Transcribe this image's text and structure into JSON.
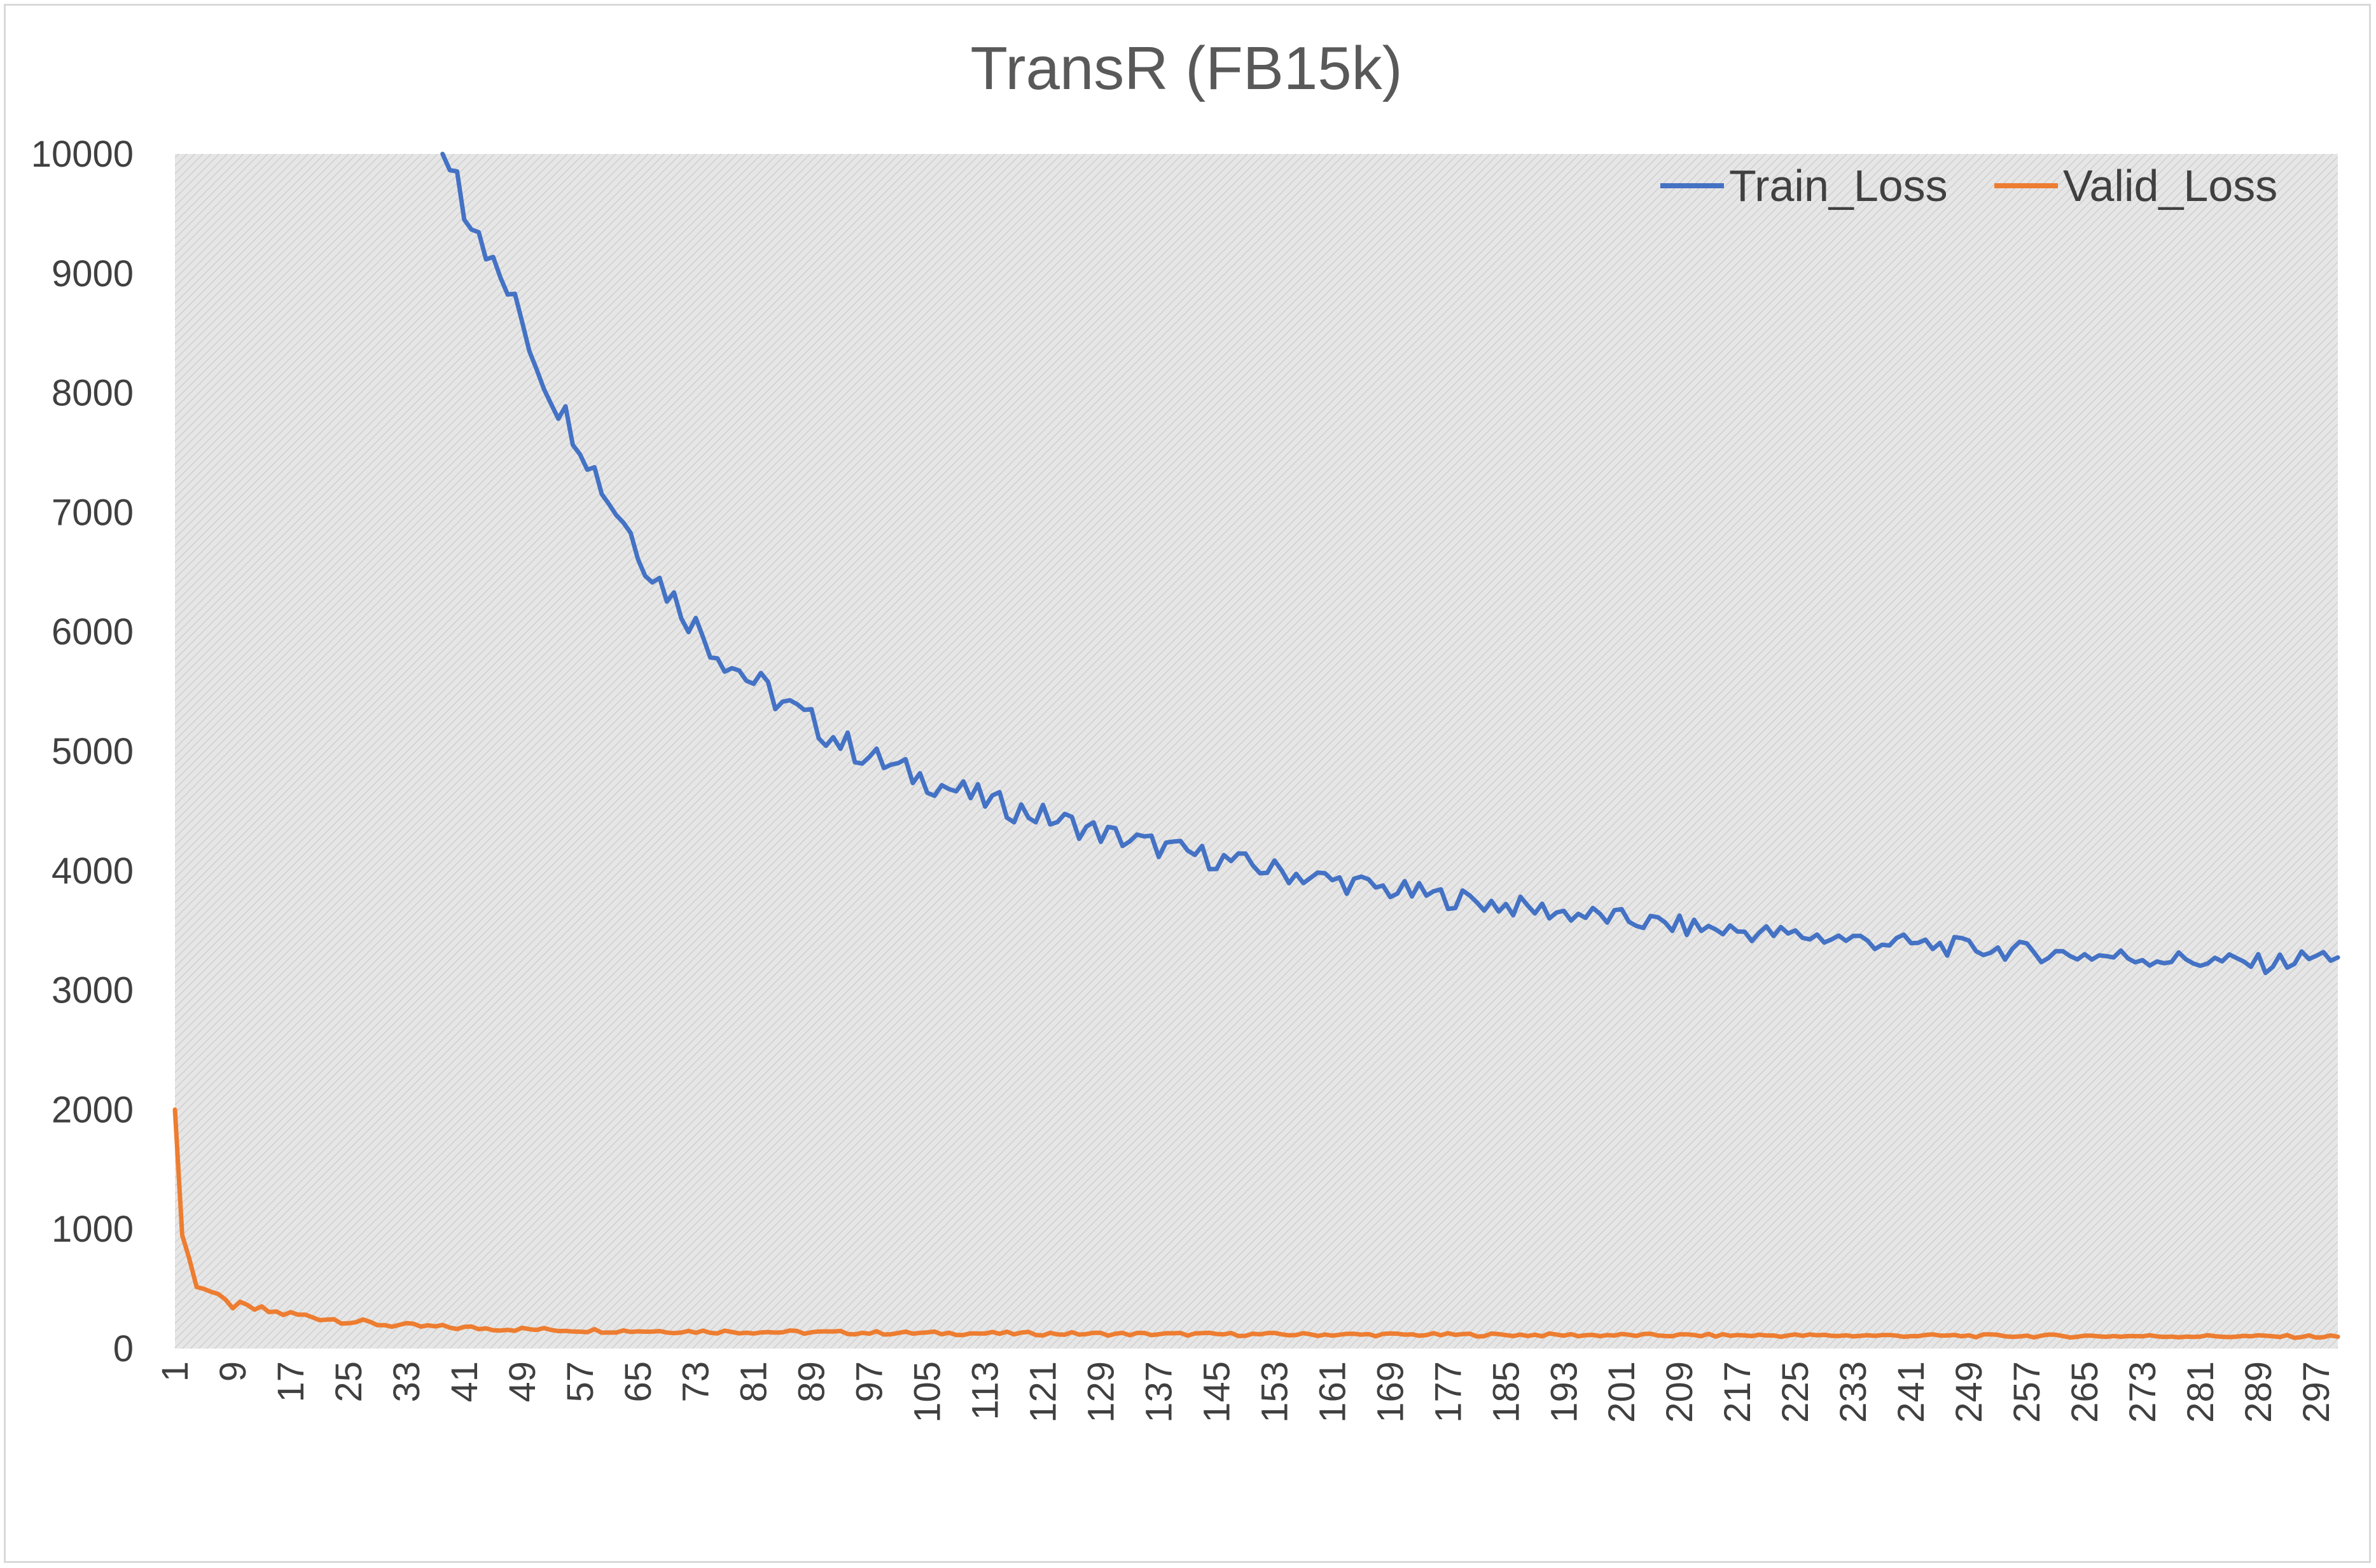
{
  "chart_data": {
    "type": "line",
    "title": "TransR (FB15k)",
    "xlabel": "",
    "ylabel": "",
    "ylim": [
      0,
      10000
    ],
    "xlim": [
      1,
      300
    ],
    "y_ticks": [
      "0",
      "1000",
      "2000",
      "3000",
      "4000",
      "5000",
      "6000",
      "7000",
      "8000",
      "9000",
      "10000"
    ],
    "x_ticks": [
      "1",
      "9",
      "17",
      "25",
      "33",
      "41",
      "49",
      "57",
      "65",
      "73",
      "81",
      "89",
      "97",
      "105",
      "113",
      "121",
      "129",
      "137",
      "145",
      "153",
      "161",
      "169",
      "177",
      "185",
      "193",
      "201",
      "209",
      "217",
      "225",
      "233",
      "241",
      "249",
      "257",
      "265",
      "273",
      "281",
      "289",
      "297"
    ],
    "grid": false,
    "legend_position": "top-right",
    "colors": {
      "train": "#4472c4",
      "valid": "#ed7d31",
      "plot_bg": "#e4e4e4",
      "hatch": "#cfcfcf"
    },
    "series": [
      {
        "name": "Train_Loss",
        "anchors": [
          [
            38,
            10000
          ],
          [
            40,
            9850
          ],
          [
            41,
            9550
          ],
          [
            43,
            9400
          ],
          [
            45,
            9050
          ],
          [
            47,
            8850
          ],
          [
            49,
            8600
          ],
          [
            51,
            8250
          ],
          [
            53,
            8000
          ],
          [
            55,
            7800
          ],
          [
            57,
            7600
          ],
          [
            59,
            7350
          ],
          [
            61,
            7100
          ],
          [
            63,
            6950
          ],
          [
            65,
            6700
          ],
          [
            67,
            6500
          ],
          [
            69,
            6350
          ],
          [
            71,
            6200
          ],
          [
            73,
            6050
          ],
          [
            75,
            5900
          ],
          [
            77,
            5780
          ],
          [
            79,
            5680
          ],
          [
            81,
            5580
          ],
          [
            84,
            5450
          ],
          [
            87,
            5320
          ],
          [
            90,
            5200
          ],
          [
            93,
            5080
          ],
          [
            96,
            4980
          ],
          [
            100,
            4870
          ],
          [
            105,
            4760
          ],
          [
            110,
            4650
          ],
          [
            115,
            4550
          ],
          [
            120,
            4470
          ],
          [
            125,
            4390
          ],
          [
            130,
            4300
          ],
          [
            135,
            4230
          ],
          [
            140,
            4160
          ],
          [
            145,
            4100
          ],
          [
            150,
            4040
          ],
          [
            155,
            3980
          ],
          [
            160,
            3930
          ],
          [
            170,
            3830
          ],
          [
            180,
            3750
          ],
          [
            190,
            3670
          ],
          [
            200,
            3600
          ],
          [
            210,
            3530
          ],
          [
            220,
            3480
          ],
          [
            230,
            3440
          ],
          [
            240,
            3390
          ],
          [
            250,
            3350
          ],
          [
            260,
            3310
          ],
          [
            270,
            3280
          ],
          [
            280,
            3250
          ],
          [
            290,
            3220
          ],
          [
            300,
            3300
          ]
        ]
      },
      {
        "name": "Valid_Loss",
        "anchors": [
          [
            1,
            2000
          ],
          [
            2,
            950
          ],
          [
            3,
            750
          ],
          [
            4,
            560
          ],
          [
            5,
            520
          ],
          [
            6,
            470
          ],
          [
            7,
            410
          ],
          [
            8,
            380
          ],
          [
            10,
            350
          ],
          [
            12,
            330
          ],
          [
            15,
            300
          ],
          [
            18,
            280
          ],
          [
            21,
            260
          ],
          [
            25,
            230
          ],
          [
            30,
            200
          ],
          [
            35,
            185
          ],
          [
            40,
            175
          ],
          [
            50,
            160
          ],
          [
            60,
            150
          ],
          [
            70,
            145
          ],
          [
            80,
            140
          ],
          [
            90,
            135
          ],
          [
            100,
            130
          ],
          [
            120,
            125
          ],
          [
            140,
            120
          ],
          [
            160,
            117
          ],
          [
            180,
            115
          ],
          [
            200,
            112
          ],
          [
            220,
            110
          ],
          [
            240,
            108
          ],
          [
            260,
            105
          ],
          [
            280,
            103
          ],
          [
            300,
            100
          ]
        ]
      }
    ]
  }
}
